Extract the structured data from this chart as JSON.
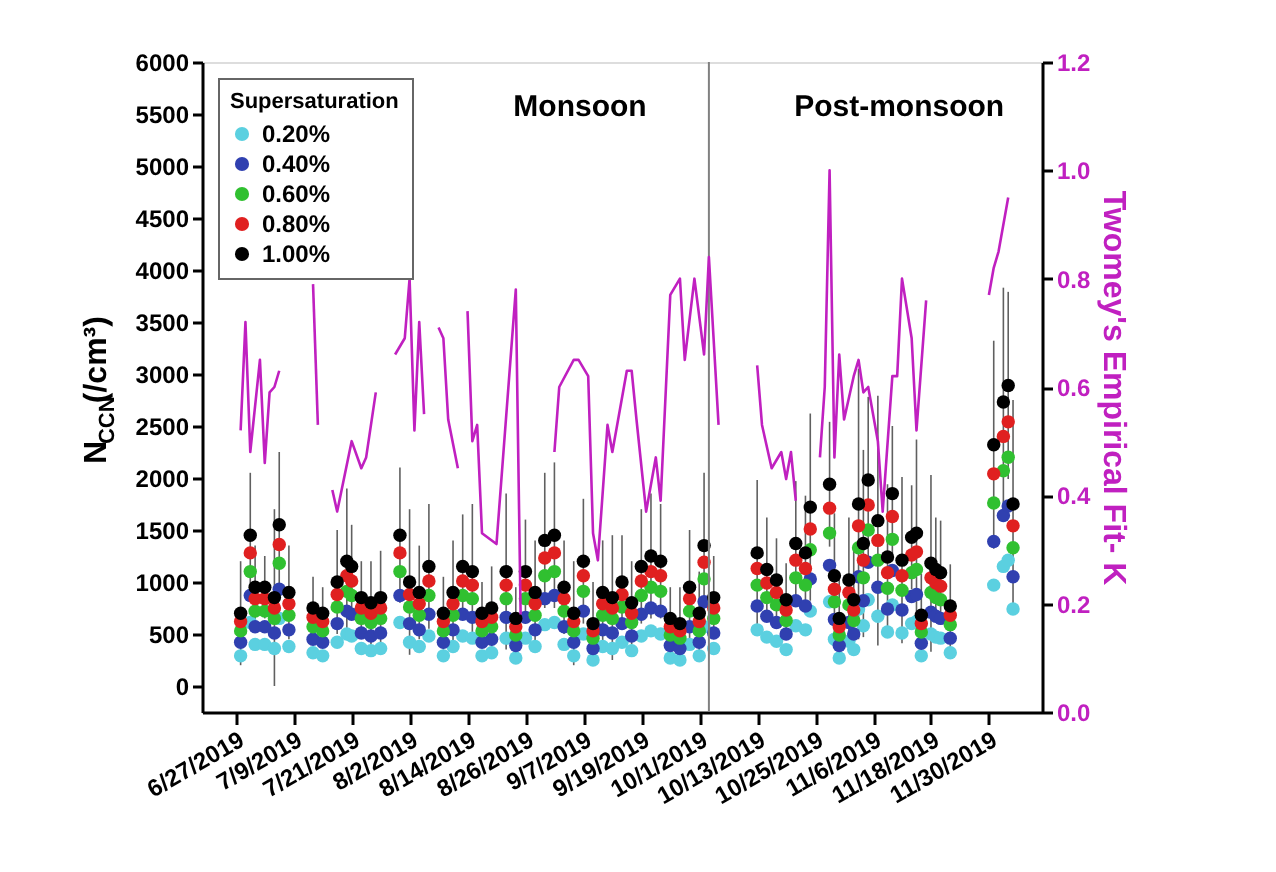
{
  "chart_data": {
    "type": "scatter",
    "xlabel": null,
    "ylabel": "N$_{CCN}$(/cm³)",
    "y2label": "Twomey's Empirical Fit- K",
    "legend_title": "Supersaturation",
    "legend": "top left",
    "marker": "circle",
    "grid": false,
    "annotations": [
      "Monsoon",
      "Post-monsoon"
    ],
    "xlim": [
      "2019-06-20",
      "2019-12-11"
    ],
    "xticks": [
      {
        "value": "2019-06-27",
        "label": "6/27/2019"
      },
      {
        "value": "2019-07-09",
        "label": "7/9/2019"
      },
      {
        "value": "2019-07-21",
        "label": "7/21/2019"
      },
      {
        "value": "2019-08-02",
        "label": "8/2/2019"
      },
      {
        "value": "2019-08-14",
        "label": "8/14/2019"
      },
      {
        "value": "2019-08-26",
        "label": "8/26/2019"
      },
      {
        "value": "2019-09-07",
        "label": "9/7/2019"
      },
      {
        "value": "2019-09-19",
        "label": "9/19/2019"
      },
      {
        "value": "2019-10-01",
        "label": "10/1/2019"
      },
      {
        "value": "2019-10-13",
        "label": "10/13/2019"
      },
      {
        "value": "2019-10-25",
        "label": "10/25/2019"
      },
      {
        "value": "2019-11-06",
        "label": "11/6/2019"
      },
      {
        "value": "2019-11-18",
        "label": "11/18/2019"
      },
      {
        "value": "2019-11-30",
        "label": "11/30/2019"
      }
    ],
    "ylim": [
      -250,
      6000
    ],
    "yticks": [
      0,
      500,
      1000,
      1500,
      2000,
      2500,
      3000,
      3500,
      4000,
      4500,
      5000,
      5500,
      6000
    ],
    "y2lim": [
      0,
      1.2
    ],
    "y2ticks": [
      {
        "value": 0,
        "label": "0.0"
      },
      0.2,
      0.4,
      0.6,
      0.8,
      {
        "value": 1,
        "label": "1.0"
      },
      1.2
    ],
    "ref_lines": [
      {
        "axis": "x",
        "value": "2019-10-03",
        "label": null,
        "color": "#808080"
      }
    ],
    "x": [
      "2019-06-28",
      "2019-06-30",
      "2019-07-01",
      "2019-07-03",
      "2019-07-05",
      "2019-07-06",
      "2019-07-08",
      "2019-07-13",
      "2019-07-15",
      "2019-07-18",
      "2019-07-20",
      "2019-07-21",
      "2019-07-23",
      "2019-07-25",
      "2019-07-27",
      "2019-07-31",
      "2019-08-02",
      "2019-08-04",
      "2019-08-06",
      "2019-08-09",
      "2019-08-11",
      "2019-08-13",
      "2019-08-15",
      "2019-08-17",
      "2019-08-19",
      "2019-08-22",
      "2019-08-24",
      "2019-08-26",
      "2019-08-28",
      "2019-08-30",
      "2019-09-01",
      "2019-09-03",
      "2019-09-05",
      "2019-09-07",
      "2019-09-09",
      "2019-09-11",
      "2019-09-13",
      "2019-09-15",
      "2019-09-17",
      "2019-09-19",
      "2019-09-21",
      "2019-09-23",
      "2019-09-25",
      "2019-09-27",
      "2019-09-29",
      "2019-10-01",
      "2019-10-02",
      "2019-10-04",
      "2019-10-13",
      "2019-10-15",
      "2019-10-17",
      "2019-10-19",
      "2019-10-21",
      "2019-10-23",
      "2019-10-24",
      "2019-10-28",
      "2019-10-29",
      "2019-10-30",
      "2019-11-01",
      "2019-11-02",
      "2019-11-03",
      "2019-11-04",
      "2019-11-05",
      "2019-11-07",
      "2019-11-09",
      "2019-11-10",
      "2019-11-12",
      "2019-11-14",
      "2019-11-15",
      "2019-11-16",
      "2019-11-18",
      "2019-11-19",
      "2019-11-20",
      "2019-11-22",
      "2019-12-01",
      "2019-12-03",
      "2019-12-04",
      "2019-12-05"
    ],
    "series": [
      {
        "name": "0.20%",
        "color": "#5bd0e0",
        "values": [
          290,
          610,
          400,
          400,
          360,
          650,
          380,
          320,
          290,
          420,
          500,
          480,
          360,
          340,
          360,
          610,
          420,
          380,
          480,
          290,
          380,
          480,
          460,
          290,
          320,
          460,
          270,
          460,
          380,
          590,
          610,
          400,
          290,
          500,
          250,
          380,
          360,
          420,
          340,
          480,
          530,
          500,
          270,
          250,
          400,
          290,
          570,
          360,
          540,
          470,
          430,
          350,
          580,
          540,
          720,
          810,
          450,
          270,
          430,
          350,
          740,
          580,
          830,
          670,
          520,
          780,
          510,
          600,
          620,
          290,
          500,
          470,
          460,
          320,
          970,
          1150,
          1210,
          740
        ]
      },
      {
        "name": "0.40%",
        "color": "#3040b0",
        "values": [
          420,
          870,
          570,
          570,
          510,
          930,
          540,
          450,
          420,
          600,
          720,
          690,
          510,
          480,
          510,
          870,
          600,
          540,
          690,
          420,
          540,
          690,
          660,
          420,
          450,
          660,
          390,
          660,
          540,
          840,
          870,
          570,
          420,
          720,
          360,
          540,
          510,
          600,
          480,
          690,
          750,
          720,
          390,
          360,
          570,
          420,
          810,
          510,
          770,
          670,
          610,
          500,
          820,
          770,
          1030,
          1160,
          640,
          390,
          610,
          500,
          1050,
          820,
          1190,
          950,
          740,
          1110,
          730,
          860,
          880,
          410,
          710,
          670,
          650,
          460,
          1390,
          1640,
          1730,
          1050
        ]
      },
      {
        "name": "0.60%",
        "color": "#30c030",
        "values": [
          530,
          1100,
          720,
          720,
          650,
          1180,
          680,
          570,
          530,
          760,
          910,
          870,
          650,
          610,
          650,
          1100,
          760,
          680,
          870,
          530,
          680,
          870,
          840,
          530,
          570,
          840,
          490,
          840,
          680,
          1060,
          1100,
          720,
          530,
          910,
          460,
          680,
          650,
          760,
          610,
          870,
          950,
          910,
          490,
          460,
          720,
          530,
          1030,
          650,
          970,
          850,
          780,
          630,
          1040,
          970,
          1310,
          1470,
          810,
          490,
          780,
          630,
          1330,
          1040,
          1500,
          1210,
          940,
          1410,
          920,
          1090,
          1120,
          520,
          900,
          850,
          830,
          590,
          1760,
          2070,
          2200,
          1330
        ]
      },
      {
        "name": "0.80%",
        "color": "#e02020",
        "values": [
          620,
          1280,
          840,
          840,
          750,
          1360,
          790,
          660,
          620,
          880,
          1060,
          1010,
          750,
          700,
          750,
          1280,
          880,
          790,
          1010,
          620,
          790,
          1010,
          970,
          620,
          660,
          970,
          570,
          970,
          790,
          1230,
          1280,
          840,
          620,
          1060,
          530,
          790,
          750,
          880,
          700,
          1010,
          1100,
          1060,
          570,
          530,
          840,
          620,
          1190,
          750,
          1130,
          990,
          900,
          730,
          1210,
          1130,
          1510,
          1710,
          930,
          570,
          900,
          730,
          1540,
          1210,
          1740,
          1400,
          1090,
          1630,
          1060,
          1260,
          1290,
          600,
          1040,
          990,
          960,
          680,
          2040,
          2400,
          2540,
          1540
        ]
      },
      {
        "name": "1.00%",
        "color": "#000000",
        "values": [
          700,
          1450,
          950,
          950,
          850,
          1550,
          900,
          750,
          700,
          1000,
          1200,
          1150,
          850,
          800,
          850,
          1450,
          1000,
          900,
          1150,
          700,
          900,
          1150,
          1100,
          700,
          750,
          1100,
          650,
          1100,
          900,
          1400,
          1450,
          950,
          700,
          1200,
          600,
          900,
          850,
          1000,
          800,
          1150,
          1250,
          1200,
          650,
          600,
          950,
          700,
          1350,
          850,
          1280,
          1120,
          1020,
          830,
          1370,
          1280,
          1720,
          1940,
          1060,
          650,
          1020,
          830,
          1750,
          1370,
          1980,
          1590,
          1240,
          1850,
          1210,
          1430,
          1470,
          680,
          1180,
          1120,
          1090,
          770,
          2320,
          2730,
          2890,
          1750
        ],
        "errors": [
          500,
          600,
          400,
          300,
          850,
          700,
          450,
          300,
          250,
          500,
          700,
          400,
          350,
          400,
          450,
          650,
          700,
          450,
          600,
          350,
          500,
          500,
          650,
          300,
          400,
          750,
          300,
          500,
          500,
          650,
          700,
          450,
          500,
          600,
          400,
          500,
          600,
          450,
          400,
          550,
          600,
          550,
          300,
          350,
          550,
          400,
          700,
          400,
          700,
          500,
          400,
          350,
          600,
          550,
          900,
          600,
          600,
          400,
          600,
          500,
          1300,
          900,
          800,
          1200,
          700,
          650,
          800,
          500,
          900,
          400,
          850,
          500,
          500,
          400,
          1000,
          1100,
          900,
          1000
        ]
      },
      {
        "type": "line",
        "axis": "y2",
        "marker": "none",
        "color": "#c020c0",
        "x": [
          "2019-06-28",
          "2019-06-29",
          "2019-06-30",
          "2019-07-02",
          "2019-07-03",
          "2019-07-04",
          "2019-07-05",
          "2019-07-06",
          "2019-07-10",
          "2019-07-13",
          "2019-07-14",
          "2019-07-16",
          "2019-07-17",
          "2019-07-18",
          "2019-07-21",
          "2019-07-23",
          "2019-07-24",
          "2019-07-26",
          "2019-07-28",
          "2019-07-30",
          "2019-08-01",
          "2019-08-02",
          "2019-08-03",
          "2019-08-04",
          "2019-08-05",
          "2019-08-07",
          "2019-08-08",
          "2019-08-09",
          "2019-08-10",
          "2019-08-12",
          "2019-08-13",
          "2019-08-14",
          "2019-08-15",
          "2019-08-16",
          "2019-08-17",
          "2019-08-20",
          "2019-08-24",
          "2019-08-25",
          "2019-08-28",
          "2019-09-01",
          "2019-09-02",
          "2019-09-05",
          "2019-09-06",
          "2019-09-08",
          "2019-09-09",
          "2019-09-10",
          "2019-09-12",
          "2019-09-13",
          "2019-09-16",
          "2019-09-17",
          "2019-09-18",
          "2019-09-20",
          "2019-09-22",
          "2019-09-23",
          "2019-09-25",
          "2019-09-27",
          "2019-09-28",
          "2019-09-30",
          "2019-10-02",
          "2019-10-03",
          "2019-10-05",
          "2019-10-09",
          "2019-10-13",
          "2019-10-14",
          "2019-10-16",
          "2019-10-18",
          "2019-10-19",
          "2019-10-20",
          "2019-10-21",
          "2019-10-23",
          "2019-10-26",
          "2019-10-27",
          "2019-10-28",
          "2019-10-29",
          "2019-10-30",
          "2019-10-31",
          "2019-11-02",
          "2019-11-03",
          "2019-11-04",
          "2019-11-05",
          "2019-11-07",
          "2019-11-08",
          "2019-11-10",
          "2019-11-11",
          "2019-11-12",
          "2019-11-14",
          "2019-11-15",
          "2019-11-17",
          "2019-11-23",
          "2019-11-30",
          "2019-12-01",
          "2019-12-02",
          "2019-12-04"
        ],
        "values": [
          0.52,
          0.72,
          0.48,
          0.65,
          0.46,
          0.59,
          0.6,
          0.63,
          null,
          0.79,
          0.53,
          null,
          0.41,
          0.37,
          0.5,
          0.45,
          0.47,
          0.59,
          null,
          0.66,
          0.69,
          0.8,
          0.52,
          0.72,
          0.55,
          null,
          0.71,
          0.69,
          0.54,
          0.45,
          null,
          0.74,
          0.5,
          0.53,
          0.33,
          0.31,
          0.78,
          0.18,
          null,
          0.48,
          0.6,
          0.65,
          0.65,
          0.62,
          0.33,
          0.28,
          0.53,
          0.48,
          0.63,
          0.63,
          0.54,
          0.37,
          0.47,
          0.39,
          0.77,
          0.8,
          0.65,
          0.8,
          0.66,
          0.84,
          0.53,
          null,
          0.64,
          0.53,
          0.45,
          0.48,
          0.43,
          0.48,
          0.39,
          null,
          0.47,
          0.6,
          1.0,
          0.47,
          0.66,
          0.54,
          0.62,
          0.65,
          0.59,
          0.6,
          0.5,
          0.37,
          0.62,
          0.62,
          0.8,
          0.69,
          0.52,
          0.76,
          null,
          0.77,
          0.82,
          0.85,
          0.95
        ]
      }
    ]
  }
}
